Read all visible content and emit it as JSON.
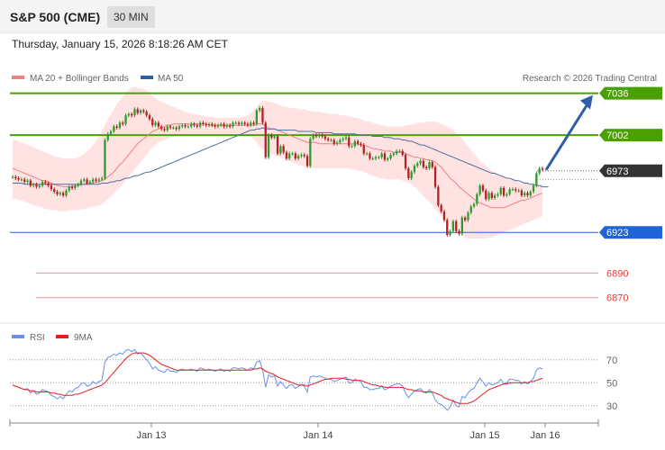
{
  "header": {
    "title": "S&P 500 (CME)",
    "interval": "30 MIN"
  },
  "timestamp": "Thursday, January 15, 2026 8:18:26 AM CET",
  "legend": {
    "ma20": "MA 20 + Bollinger Bands",
    "ma50": "MA 50",
    "credit": "Research © 2026 Trading Central"
  },
  "rsi_legend": {
    "rsi": "RSI",
    "ma9": "9MA"
  },
  "colors": {
    "up": "#2f9a2f",
    "down": "#b22222",
    "resistance": "#4aa000",
    "support": "#1f63d6",
    "target_low": "#e04040",
    "current": "#333333",
    "arrow": "#2e5ea8",
    "ma50": "#4a6fa5",
    "ma20": "#f08080",
    "band": "#ffd9d9",
    "rsi": "#6a8fe8",
    "rsi_ma": "#e02020"
  },
  "chart_data": [
    {
      "type": "candlestick",
      "ylim": [
        6853,
        7043
      ],
      "x_labels": [
        "Jan 13",
        "Jan 14",
        "Jan 15",
        "Jan 16"
      ],
      "levels": [
        {
          "value": 7036,
          "label": "7036",
          "kind": "resistance"
        },
        {
          "value": 7002,
          "label": "7002",
          "kind": "resistance"
        },
        {
          "value": 6973,
          "label": "6973",
          "kind": "current"
        },
        {
          "value": 6923,
          "label": "6923",
          "kind": "support"
        },
        {
          "value": 6890,
          "label": "6890",
          "kind": "target"
        },
        {
          "value": 6870,
          "label": "6870",
          "kind": "target"
        }
      ],
      "close": [
        6968,
        6967,
        6966,
        6966,
        6964,
        6965,
        6961,
        6962,
        6960,
        6961,
        6964,
        6963,
        6961,
        6958,
        6956,
        6954,
        6955,
        6953,
        6957,
        6960,
        6959,
        6961,
        6962,
        6965,
        6966,
        6963,
        6964,
        6966,
        6965,
        6966,
        6967,
        6998,
        7003,
        7005,
        7009,
        7008,
        7012,
        7011,
        7018,
        7019,
        7018,
        7023,
        7020,
        7022,
        7021,
        7018,
        7015,
        7010,
        7012,
        7009,
        7007,
        7006,
        7009,
        7008,
        7008,
        7007,
        7009,
        7010,
        7009,
        7009,
        7011,
        7010,
        7009,
        7012,
        7011,
        7010,
        7011,
        7010,
        7009,
        7010,
        7011,
        7009,
        7010,
        7009,
        7012,
        7012,
        7011,
        7012,
        7011,
        7010,
        7012,
        7011,
        7022,
        7024,
        7012,
        6984,
        7002,
        7000,
        7001,
        6987,
        6993,
        6988,
        6983,
        6987,
        6987,
        6983,
        6985,
        6986,
        6985,
        6977,
        6999,
        7002,
        7001,
        7002,
        7001,
        6999,
        6998,
        6998,
        6995,
        6996,
        6998,
        6999,
        7000,
        6993,
        6993,
        6997,
        6995,
        6994,
        6987,
        6987,
        6983,
        6983,
        6984,
        6984,
        6987,
        6982,
        6983,
        6986,
        6987,
        6989,
        6989,
        6986,
        6975,
        6967,
        6972,
        6977,
        6979,
        6981,
        6976,
        6975,
        6980,
        6976,
        6960,
        6945,
        6940,
        6933,
        6921,
        6924,
        6932,
        6924,
        6922,
        6935,
        6933,
        6939,
        6944,
        6946,
        6954,
        6961,
        6957,
        6950,
        6955,
        6951,
        6953,
        6954,
        6959,
        6953,
        6954,
        6958,
        6958,
        6957,
        6957,
        6953,
        6955,
        6953,
        6956,
        6961,
        6971,
        6975,
        6974
      ],
      "ma20": [
        6975,
        6974,
        6973,
        6972,
        6971,
        6970,
        6969,
        6968,
        6967,
        6966,
        6965,
        6965,
        6964,
        6963,
        6962,
        6961,
        6961,
        6960,
        6960,
        6960,
        6960,
        6961,
        6961,
        6962,
        6962,
        6963,
        6963,
        6963,
        6964,
        6964,
        6965,
        6966,
        6968,
        6970,
        6972,
        6975,
        6978,
        6980,
        6983,
        6986,
        6989,
        6992,
        6995,
        6997,
        6999,
        7001,
        7003,
        7005,
        7006,
        7007,
        7008,
        7009,
        7010,
        7010,
        7011,
        7011,
        7011,
        7011,
        7011,
        7011,
        7011,
        7011,
        7011,
        7011,
        7011,
        7011,
        7010,
        7010,
        7010,
        7010,
        7010,
        7010,
        7010,
        7010,
        7010,
        7010,
        7010,
        7010,
        7010,
        7010,
        7010,
        7010,
        7011,
        7011,
        7011,
        7009,
        7008,
        7007,
        7007,
        7006,
        7005,
        7004,
        7003,
        7002,
        7001,
        7000,
        6999,
        6998,
        6997,
        6996,
        6996,
        6996,
        6996,
        6995,
        6995,
        6995,
        6995,
        6995,
        6995,
        6995,
        6995,
        6995,
        6995,
        6995,
        6995,
        6995,
        6995,
        6994,
        6994,
        6993,
        6992,
        6991,
        6991,
        6990,
        6990,
        6989,
        6989,
        6989,
        6988,
        6988,
        6988,
        6988,
        6987,
        6986,
        6985,
        6984,
        6984,
        6983,
        6983,
        6982,
        6982,
        6981,
        6980,
        6978,
        6976,
        6973,
        6970,
        6967,
        6965,
        6963,
        6960,
        6958,
        6956,
        6954,
        6952,
        6950,
        6948,
        6947,
        6946,
        6945,
        6944,
        6943,
        6943,
        6943,
        6943,
        6943,
        6944,
        6945,
        6946,
        6947,
        6948,
        6949,
        6949,
        6950,
        6951,
        6952,
        6953,
        6954,
        6955
      ],
      "bb_upper": [
        6998,
        6998,
        6997,
        6996,
        6995,
        6994,
        6993,
        6992,
        6991,
        6990,
        6989,
        6988,
        6987,
        6986,
        6985,
        6984,
        6984,
        6983,
        6983,
        6983,
        6983,
        6983,
        6984,
        6985,
        6987,
        6989,
        6991,
        6994,
        6997,
        7001,
        7005,
        7010,
        7015,
        7019,
        7023,
        7027,
        7030,
        7033,
        7036,
        7039,
        7041,
        7041,
        7041,
        7040,
        7040,
        7038,
        7036,
        7034,
        7032,
        7030,
        7029,
        7028,
        7027,
        7026,
        7025,
        7024,
        7023,
        7022,
        7021,
        7020,
        7020,
        7019,
        7019,
        7018,
        7018,
        7017,
        7017,
        7017,
        7016,
        7016,
        7016,
        7016,
        7016,
        7016,
        7016,
        7016,
        7016,
        7017,
        7017,
        7018,
        7020,
        7022,
        7025,
        7028,
        7030,
        7030,
        7029,
        7029,
        7028,
        7027,
        7026,
        7025,
        7025,
        7024,
        7024,
        7024,
        7023,
        7023,
        7023,
        7022,
        7022,
        7021,
        7021,
        7021,
        7020,
        7020,
        7020,
        7019,
        7019,
        7019,
        7018,
        7018,
        7018,
        7017,
        7017,
        7016,
        7016,
        7015,
        7014,
        7013,
        7013,
        7012,
        7011,
        7011,
        7010,
        7010,
        7009,
        7009,
        7009,
        7009,
        7009,
        7009,
        7010,
        7010,
        7011,
        7011,
        7012,
        7012,
        7012,
        7013,
        7013,
        7013,
        7013,
        7012,
        7011,
        7010,
        7009,
        7008,
        7006,
        7004,
        7002,
        6999,
        6996,
        6993,
        6990,
        6987,
        6984,
        6981,
        6979,
        6977,
        6975,
        6973,
        6972,
        6970,
        6969,
        6968,
        6967,
        6966,
        6966,
        6965,
        6964,
        6964,
        6963,
        6963,
        6963,
        6962,
        6962,
        6962,
        6962
      ],
      "bb_lower": [
        6950,
        6950,
        6949,
        6949,
        6948,
        6947,
        6946,
        6945,
        6944,
        6944,
        6943,
        6942,
        6942,
        6941,
        6941,
        6941,
        6940,
        6940,
        6940,
        6941,
        6941,
        6941,
        6941,
        6942,
        6942,
        6943,
        6943,
        6944,
        6944,
        6945,
        6946,
        6948,
        6950,
        6952,
        6955,
        6957,
        6960,
        6962,
        6965,
        6968,
        6971,
        6974,
        6977,
        6980,
        6983,
        6986,
        6989,
        6992,
        6994,
        6996,
        6997,
        6998,
        6999,
        7000,
        7001,
        7001,
        7002,
        7002,
        7003,
        7003,
        7003,
        7003,
        7003,
        7003,
        7003,
        7003,
        7003,
        7003,
        7003,
        7003,
        7003,
        7003,
        7003,
        7003,
        7003,
        7003,
        7003,
        7003,
        7003,
        7002,
        7001,
        6999,
        6996,
        6993,
        6990,
        6989,
        6988,
        6987,
        6986,
        6985,
        6984,
        6983,
        6982,
        6981,
        6980,
        6979,
        6978,
        6977,
        6976,
        6976,
        6975,
        6975,
        6975,
        6975,
        6975,
        6975,
        6975,
        6975,
        6975,
        6975,
        6975,
        6975,
        6975,
        6975,
        6974,
        6974,
        6973,
        6973,
        6972,
        6971,
        6970,
        6969,
        6968,
        6967,
        6967,
        6966,
        6966,
        6966,
        6966,
        6966,
        6966,
        6965,
        6964,
        6963,
        6962,
        6960,
        6958,
        6955,
        6952,
        6950,
        6948,
        6945,
        6942,
        6939,
        6936,
        6933,
        6930,
        6927,
        6925,
        6923,
        6921,
        6920,
        6919,
        6918,
        6918,
        6918,
        6918,
        6918,
        6918,
        6918,
        6919,
        6919,
        6920,
        6921,
        6922,
        6923,
        6924,
        6925,
        6926,
        6927,
        6928,
        6929,
        6930,
        6931,
        6932,
        6933,
        6934,
        6935,
        6936
      ],
      "ma50": [
        6963,
        6963,
        6963,
        6963,
        6962,
        6962,
        6962,
        6962,
        6962,
        6962,
        6962,
        6962,
        6962,
        6962,
        6962,
        6962,
        6962,
        6962,
        6962,
        6962,
        6962,
        6962,
        6962,
        6962,
        6962,
        6962,
        6962,
        6962,
        6962,
        6962,
        6963,
        6963,
        6963,
        6964,
        6964,
        6965,
        6965,
        6966,
        6967,
        6967,
        6968,
        6969,
        6969,
        6970,
        6971,
        6972,
        6972,
        6973,
        6974,
        6975,
        6976,
        6977,
        6978,
        6979,
        6980,
        6981,
        6982,
        6983,
        6984,
        6985,
        6986,
        6987,
        6988,
        6989,
        6990,
        6991,
        6992,
        6993,
        6994,
        6995,
        6996,
        6997,
        6998,
        6999,
        7000,
        7001,
        7002,
        7003,
        7004,
        7005,
        7006,
        7006,
        7007,
        7007,
        7008,
        7007,
        7007,
        7007,
        7007,
        7006,
        7006,
        7006,
        7006,
        7006,
        7006,
        7006,
        7005,
        7005,
        7005,
        7005,
        7005,
        7005,
        7004,
        7004,
        7004,
        7004,
        7004,
        7004,
        7003,
        7003,
        7003,
        7003,
        7003,
        7003,
        7003,
        7003,
        7002,
        7002,
        7002,
        7002,
        7002,
        7001,
        7001,
        7001,
        7001,
        7000,
        7000,
        7000,
        6999,
        6999,
        6999,
        6998,
        6998,
        6997,
        6997,
        6996,
        6995,
        6994,
        6994,
        6993,
        6992,
        6991,
        6990,
        6989,
        6988,
        6987,
        6986,
        6985,
        6984,
        6983,
        6982,
        6981,
        6980,
        6979,
        6978,
        6977,
        6976,
        6975,
        6974,
        6973,
        6972,
        6971,
        6971,
        6970,
        6969,
        6968,
        6967,
        6967,
        6966,
        6965,
        6965,
        6964,
        6963,
        6963,
        6962,
        6962,
        6961,
        6961,
        6960,
        6960,
        6960
      ],
      "forecast": {
        "from": 6973,
        "to": 7036
      }
    },
    {
      "type": "line",
      "title": "RSI",
      "ylim": [
        22,
        80
      ],
      "yticks": [
        70,
        50,
        30
      ],
      "rsi": [
        48,
        47,
        46,
        45,
        44,
        45,
        41,
        43,
        40,
        41,
        44,
        43,
        42,
        39,
        38,
        36,
        38,
        36,
        40,
        43,
        42,
        45,
        46,
        49,
        50,
        47,
        48,
        51,
        49,
        51,
        52,
        68,
        72,
        73,
        75,
        74,
        76,
        75,
        78,
        79,
        77,
        79,
        75,
        76,
        73,
        70,
        67,
        62,
        64,
        61,
        60,
        59,
        62,
        60,
        60,
        59,
        61,
        62,
        61,
        61,
        62,
        61,
        60,
        63,
        62,
        61,
        62,
        61,
        60,
        61,
        62,
        60,
        61,
        60,
        63,
        63,
        62,
        63,
        62,
        61,
        63,
        62,
        68,
        69,
        61,
        46,
        57,
        55,
        56,
        47,
        51,
        48,
        45,
        48,
        48,
        45,
        47,
        48,
        47,
        42,
        55,
        56,
        55,
        56,
        55,
        54,
        53,
        53,
        51,
        52,
        53,
        54,
        55,
        50,
        50,
        53,
        52,
        51,
        46,
        46,
        44,
        44,
        45,
        45,
        47,
        44,
        45,
        47,
        48,
        49,
        49,
        47,
        41,
        37,
        40,
        43,
        44,
        45,
        42,
        41,
        44,
        41,
        35,
        32,
        31,
        29,
        26,
        29,
        35,
        30,
        29,
        38,
        37,
        41,
        44,
        45,
        50,
        54,
        51,
        47,
        50,
        48,
        49,
        50,
        53,
        49,
        50,
        53,
        53,
        52,
        52,
        49,
        51,
        49,
        51,
        54,
        61,
        63,
        62
      ],
      "rsi_ma": [
        48,
        47,
        46,
        45,
        44,
        44,
        43,
        43,
        42,
        42,
        42,
        42,
        42,
        41,
        41,
        40,
        40,
        39,
        39,
        39,
        39,
        40,
        40,
        41,
        42,
        43,
        44,
        45,
        46,
        47,
        48,
        50,
        53,
        56,
        59,
        62,
        65,
        68,
        71,
        73,
        75,
        76,
        76,
        76,
        76,
        75,
        74,
        72,
        70,
        68,
        66,
        65,
        64,
        63,
        62,
        61,
        61,
        61,
        61,
        61,
        61,
        61,
        61,
        61,
        61,
        61,
        61,
        61,
        61,
        61,
        61,
        61,
        61,
        61,
        61,
        61,
        61,
        61,
        61,
        61,
        61,
        62,
        62,
        63,
        62,
        60,
        59,
        58,
        57,
        55,
        54,
        53,
        52,
        51,
        50,
        49,
        48,
        48,
        48,
        47,
        48,
        49,
        50,
        51,
        52,
        53,
        53,
        54,
        54,
        54,
        54,
        54,
        53,
        53,
        52,
        52,
        52,
        52,
        51,
        50,
        49,
        48,
        48,
        47,
        47,
        46,
        46,
        46,
        46,
        46,
        46,
        46,
        45,
        44,
        44,
        43,
        43,
        43,
        42,
        42,
        42,
        42,
        41,
        40,
        39,
        37,
        36,
        35,
        34,
        33,
        32,
        32,
        32,
        32,
        33,
        34,
        36,
        38,
        40,
        42,
        44,
        45,
        46,
        47,
        48,
        49,
        49,
        50,
        50,
        50,
        50,
        50,
        50,
        50,
        51,
        51,
        52,
        53,
        54
      ]
    }
  ]
}
